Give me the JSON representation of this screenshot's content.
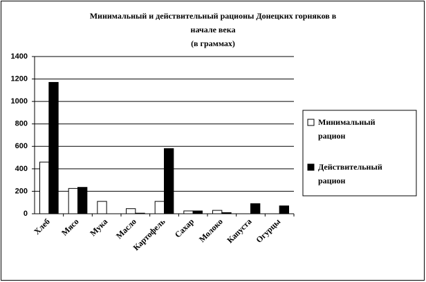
{
  "chart_data": {
    "type": "bar",
    "title": [
      "Минимальный и действительный рационы Донецких горняков в",
      "начале века",
      "(в граммах)"
    ],
    "categories": [
      "Хлеб",
      "Мясо",
      "Мука",
      "Масло",
      "Картофель",
      "Сахар",
      "Молоко",
      "Капуста",
      "Огурцы"
    ],
    "series": [
      {
        "name": "Минимальный рацион",
        "color": "#ffffff",
        "values": [
          460,
          225,
          110,
          45,
          110,
          25,
          30,
          0,
          0
        ]
      },
      {
        "name": "Действительный рацион",
        "color": "#000000",
        "values": [
          1170,
          235,
          0,
          5,
          580,
          25,
          10,
          90,
          70
        ]
      }
    ],
    "ylim": [
      0,
      1400
    ],
    "yticks": [
      0,
      200,
      400,
      600,
      800,
      1000,
      1200,
      1400
    ],
    "grid": true
  }
}
